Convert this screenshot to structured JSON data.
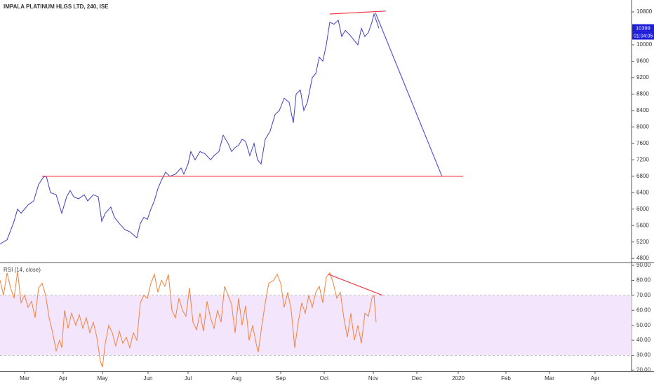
{
  "chart_data": [
    {
      "type": "line",
      "title": "IMPALA PLATINUM HLGS LTD, 240, ISE",
      "series": [
        {
          "color": "#3f3fc4",
          "x": [
            0,
            5,
            10,
            12.5,
            15,
            20,
            24,
            27.5,
            31,
            33,
            36,
            40,
            44,
            47.5,
            50,
            52.5,
            56,
            60,
            62.5,
            66.5,
            70,
            72.5,
            75,
            79,
            81.5,
            85,
            89,
            92.5,
            97.5,
            100,
            102.5,
            105,
            107.5,
            110,
            112.5,
            115,
            118,
            121,
            125,
            129,
            131,
            134,
            136,
            139,
            142.5,
            146,
            150,
            152.5,
            156,
            159,
            162.5,
            165,
            167.5,
            170,
            172.5,
            175,
            178,
            181,
            183.5,
            186,
            189,
            192.5,
            196,
            199,
            202.5,
            206,
            209,
            211,
            214,
            216.5,
            219,
            222.5,
            225,
            227.5,
            230,
            232.5,
            235,
            238,
            241,
            243.5,
            246,
            249,
            252.5,
            255,
            257.5,
            260,
            262.5,
            265,
            266.5,
            268,
            270
          ],
          "values": [
            5150,
            5250,
            5700,
            6000,
            5900,
            6100,
            6200,
            6600,
            6780,
            6800,
            6400,
            6350,
            5900,
            6300,
            6450,
            6300,
            6250,
            6350,
            6200,
            6350,
            6300,
            5700,
            5900,
            6050,
            5800,
            5650,
            5500,
            5450,
            5300,
            5650,
            5800,
            5750,
            6000,
            6200,
            6500,
            6700,
            6900,
            6800,
            6850,
            7000,
            6850,
            7100,
            7400,
            7200,
            7400,
            7350,
            7200,
            7300,
            7400,
            7800,
            7600,
            7400,
            7500,
            7550,
            7700,
            7650,
            7300,
            7600,
            7200,
            7100,
            7700,
            7900,
            8300,
            8400,
            8700,
            8600,
            8100,
            8800,
            8900,
            8400,
            8600,
            9200,
            9300,
            9700,
            9600,
            10000,
            10550,
            10500,
            10600,
            10200,
            10350,
            10250,
            10100,
            10000,
            10400,
            10200,
            10300,
            10550,
            10750,
            10600,
            10400
          ]
        }
      ],
      "lines": [
        {
          "color": "#f23645",
          "x": [
            30,
            330
          ],
          "values": [
            6800,
            6800
          ]
        },
        {
          "color": "#f23645",
          "x": [
            235,
            275
          ],
          "values": [
            10750,
            10820
          ]
        },
        {
          "color": "#5656e0",
          "x": [
            267.5,
            315
          ],
          "values": [
            10780,
            6790
          ]
        }
      ],
      "last_price": 10399,
      "countdown": "01:04:05",
      "ylim": [
        4700,
        11090
      ],
      "yticks": [
        4800,
        5200,
        5600,
        6000,
        6400,
        6800,
        7200,
        7600,
        8000,
        8400,
        8800,
        9200,
        9600,
        10000,
        10800
      ]
    },
    {
      "type": "line",
      "title": "RSI (14, close)",
      "series": [
        {
          "color": "#f5813a",
          "x": [
            0,
            2.5,
            5,
            7.5,
            10,
            12.5,
            15,
            17.5,
            20,
            22.5,
            25,
            27.5,
            30,
            32.5,
            35,
            37.5,
            40,
            42.5,
            44,
            46,
            48.5,
            51,
            54,
            56.5,
            59,
            61.5,
            64,
            66.5,
            69,
            71.5,
            73,
            75,
            77.5,
            80,
            82.5,
            85,
            87.5,
            90,
            92.5,
            95,
            97.5,
            100,
            102.5,
            105,
            107.5,
            110,
            112.5,
            115,
            117.5,
            120,
            122.5,
            125,
            127.5,
            130,
            132.5,
            135,
            137.5,
            140,
            142.5,
            145,
            147.5,
            150,
            152.5,
            155,
            157.5,
            160,
            162.5,
            165,
            167.5,
            170,
            172.5,
            175,
            177.5,
            180,
            182.5,
            184,
            186,
            189,
            191.5,
            195,
            197.5,
            200,
            202.5,
            205,
            207.5,
            210,
            212.5,
            215,
            217.5,
            220,
            222.5,
            225,
            227.5,
            230,
            232.5,
            235,
            237.5,
            240,
            242.5,
            245,
            247.5,
            250,
            252.5,
            255,
            257.5,
            260,
            262.5,
            265,
            266.5,
            268
          ],
          "values": [
            80,
            70,
            85,
            75,
            68,
            86,
            65,
            70,
            62,
            66,
            55,
            75,
            78,
            70,
            55,
            45,
            33,
            40,
            35,
            60,
            48,
            58,
            50,
            57,
            48,
            55,
            45,
            52,
            42,
            26,
            22,
            38,
            50,
            45,
            36,
            46,
            38,
            42,
            35,
            45,
            40,
            65,
            70,
            68,
            78,
            84,
            72,
            80,
            76,
            84,
            60,
            55,
            68,
            60,
            56,
            75,
            52,
            47,
            58,
            46,
            66,
            55,
            48,
            60,
            52,
            76,
            70,
            64,
            45,
            68,
            50,
            63,
            40,
            50,
            38,
            32,
            46,
            65,
            78,
            80,
            84,
            78,
            62,
            72,
            60,
            35,
            52,
            65,
            58,
            70,
            62,
            72,
            76,
            65,
            82,
            85,
            78,
            68,
            72,
            55,
            42,
            58,
            40,
            50,
            38,
            58,
            56,
            68,
            70,
            52
          ]
        }
      ],
      "lines": [
        {
          "color": "#f23645",
          "x": [
            234,
            272.5
          ],
          "values": [
            84,
            70
          ]
        }
      ],
      "band": [
        30,
        70
      ],
      "ylim": [
        19.5,
        91.4
      ],
      "yticks": [
        {
          "value": 20,
          "label": "20.00"
        },
        {
          "value": 30,
          "label": "30.00"
        },
        {
          "value": 40,
          "label": "40.00"
        },
        {
          "value": 50,
          "label": "50.00"
        },
        {
          "value": 60,
          "label": "60.00"
        },
        {
          "value": 70,
          "label": "70.00"
        },
        {
          "value": 80,
          "label": "80.00"
        },
        {
          "value": 90,
          "label": "90.00"
        }
      ],
      "xlim": [
        0,
        450
      ],
      "xticks": [
        {
          "value": 17.5,
          "label": "Mar"
        },
        {
          "value": 45,
          "label": "Apr"
        },
        {
          "value": 73,
          "label": "May"
        },
        {
          "value": 105.5,
          "label": "Jun"
        },
        {
          "value": 134,
          "label": "Jul"
        },
        {
          "value": 168.5,
          "label": "Aug"
        },
        {
          "value": 200,
          "label": "Sep"
        },
        {
          "value": 231,
          "label": "Oct"
        },
        {
          "value": 266,
          "label": "Nov"
        },
        {
          "value": 297,
          "label": "Dec"
        },
        {
          "value": 326.5,
          "label": "2020"
        },
        {
          "value": 360.5,
          "label": "Feb"
        },
        {
          "value": 391.5,
          "label": "Mar"
        },
        {
          "value": 424,
          "label": "Apr"
        }
      ]
    }
  ]
}
